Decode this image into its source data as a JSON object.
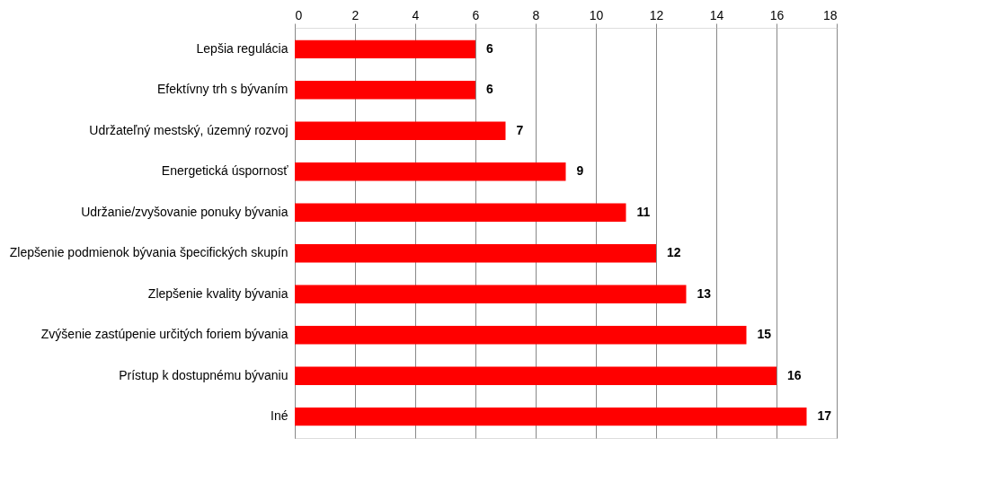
{
  "chart_data": {
    "type": "bar",
    "orientation": "horizontal",
    "categories": [
      "Lepšia regulácia",
      "Efektívny trh s bývaním",
      "Udržateľný mestský, územný rozvoj",
      "Energetická úspornosť",
      "Udržanie/zvyšovanie ponuky bývania",
      "Zlepšenie podmienok bývania špecifických skupín",
      "Zlepšenie kvality bývania",
      "Zvýšenie zastúpenie určitých foriem bývania",
      "Prístup k dostupnému bývaniu",
      "Iné"
    ],
    "values": [
      6,
      6,
      7,
      9,
      11,
      12,
      13,
      15,
      16,
      17
    ],
    "color": "#ff0000",
    "xlim": [
      0,
      18
    ],
    "xticks": [
      0,
      2,
      4,
      6,
      8,
      10,
      12,
      14,
      16,
      18
    ],
    "grid": "x",
    "data_labels": true
  }
}
